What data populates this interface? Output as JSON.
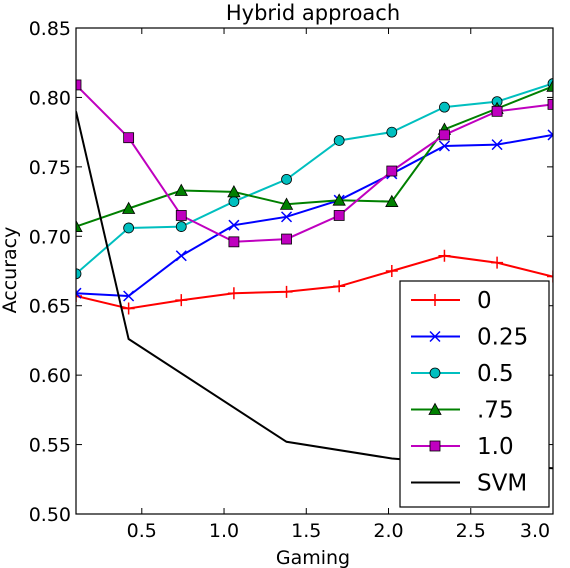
{
  "chart_data": {
    "type": "line",
    "title": "Hybrid approach",
    "xlabel": "Gaming",
    "ylabel": "Accuracy",
    "xlim": [
      0.1,
      3.0
    ],
    "ylim": [
      0.5,
      0.85
    ],
    "xticks": [
      0.5,
      1.0,
      1.5,
      2.0,
      2.5,
      3.0
    ],
    "xtick_labels": [
      "0.5",
      "1.0",
      "1.5",
      "2.0",
      "2.5",
      "3.0"
    ],
    "yticks": [
      0.5,
      0.55,
      0.6,
      0.65,
      0.7,
      0.75,
      0.8,
      0.85
    ],
    "ytick_labels": [
      "0.50",
      "0.55",
      "0.60",
      "0.65",
      "0.70",
      "0.75",
      "0.80",
      "0.85"
    ],
    "grid": false,
    "legend_position": "bottom-right",
    "series": [
      {
        "name": "0",
        "color": "#ff0000",
        "marker": "plus",
        "x": [
          0.1,
          0.42,
          0.74,
          1.06,
          1.38,
          1.7,
          2.02,
          2.34,
          2.66,
          3.0
        ],
        "y": [
          0.657,
          0.648,
          0.654,
          0.659,
          0.66,
          0.664,
          0.675,
          0.686,
          0.681,
          0.671
        ]
      },
      {
        "name": "0.25",
        "color": "#0000ff",
        "marker": "x",
        "x": [
          0.1,
          0.42,
          0.74,
          1.06,
          1.38,
          1.7,
          2.02,
          2.34,
          2.66,
          3.0
        ],
        "y": [
          0.659,
          0.657,
          0.686,
          0.708,
          0.714,
          0.726,
          0.745,
          0.765,
          0.766,
          0.773
        ]
      },
      {
        "name": "0.5",
        "color": "#00bfbf",
        "marker": "circle",
        "x": [
          0.1,
          0.42,
          0.74,
          1.06,
          1.38,
          1.7,
          2.02,
          2.34,
          2.66,
          3.0
        ],
        "y": [
          0.673,
          0.706,
          0.707,
          0.725,
          0.741,
          0.769,
          0.775,
          0.793,
          0.797,
          0.81
        ]
      },
      {
        "name": ".75",
        "color": "#008000",
        "marker": "triangle",
        "x": [
          0.1,
          0.42,
          0.74,
          1.06,
          1.38,
          1.7,
          2.02,
          2.34,
          2.66,
          3.0
        ],
        "y": [
          0.707,
          0.72,
          0.733,
          0.732,
          0.723,
          0.726,
          0.725,
          0.777,
          0.792,
          0.808
        ]
      },
      {
        "name": "1.0",
        "color": "#bf00bf",
        "marker": "square",
        "x": [
          0.1,
          0.42,
          0.74,
          1.06,
          1.38,
          1.7,
          2.02,
          2.34,
          2.66,
          3.0
        ],
        "y": [
          0.809,
          0.771,
          0.715,
          0.696,
          0.698,
          0.715,
          0.747,
          0.773,
          0.79,
          0.795
        ]
      },
      {
        "name": "SVM",
        "color": "#000000",
        "marker": "none",
        "x": [
          0.1,
          0.42,
          1.38,
          2.02,
          2.34,
          3.0
        ],
        "y": [
          0.79,
          0.626,
          0.552,
          0.54,
          0.537,
          0.533
        ]
      }
    ]
  }
}
